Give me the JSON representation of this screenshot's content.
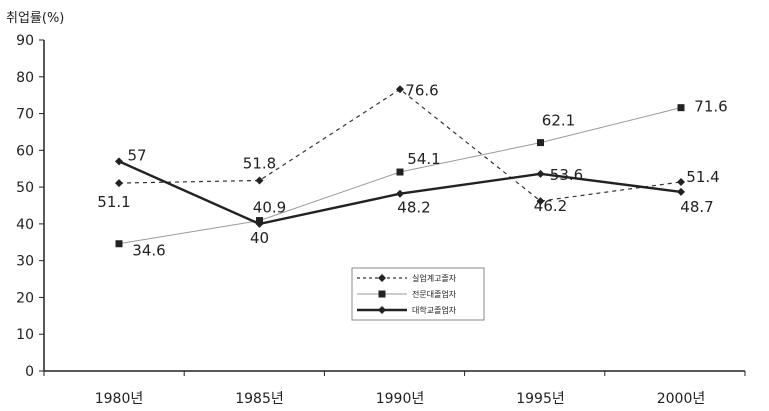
{
  "chart_data": {
    "type": "line",
    "title": "",
    "ylabel": "취업률(%)",
    "xlabel": "",
    "categories": [
      "1980년",
      "1985년",
      "1990년",
      "1995년",
      "2000년"
    ],
    "ylim": [
      0,
      90
    ],
    "yticks": [
      0,
      10,
      20,
      30,
      40,
      50,
      60,
      70,
      80,
      90
    ],
    "grid": false,
    "legend_position": "center-bottom",
    "series": [
      {
        "name": "실업계고졸자",
        "values": [
          51.1,
          51.8,
          76.6,
          46.2,
          51.4
        ],
        "labels": [
          "51.1",
          "51.8",
          "76.6",
          "46.2",
          "51.4"
        ],
        "style": "dashed",
        "marker": "diamond",
        "color": "#333333"
      },
      {
        "name": "전문대졸업자",
        "values": [
          34.6,
          40.9,
          54.1,
          62.1,
          71.6
        ],
        "labels": [
          "34.6",
          "40.9",
          "54.1",
          "62.1",
          "71.6"
        ],
        "style": "thin",
        "marker": "square",
        "color": "#9a9a9a"
      },
      {
        "name": "대학교졸업자",
        "values": [
          57,
          40,
          48.2,
          53.6,
          48.7
        ],
        "labels": [
          "57",
          "40",
          "48.2",
          "53.6",
          "48.7"
        ],
        "style": "thick",
        "marker": "diamond",
        "color": "#222222"
      }
    ]
  }
}
